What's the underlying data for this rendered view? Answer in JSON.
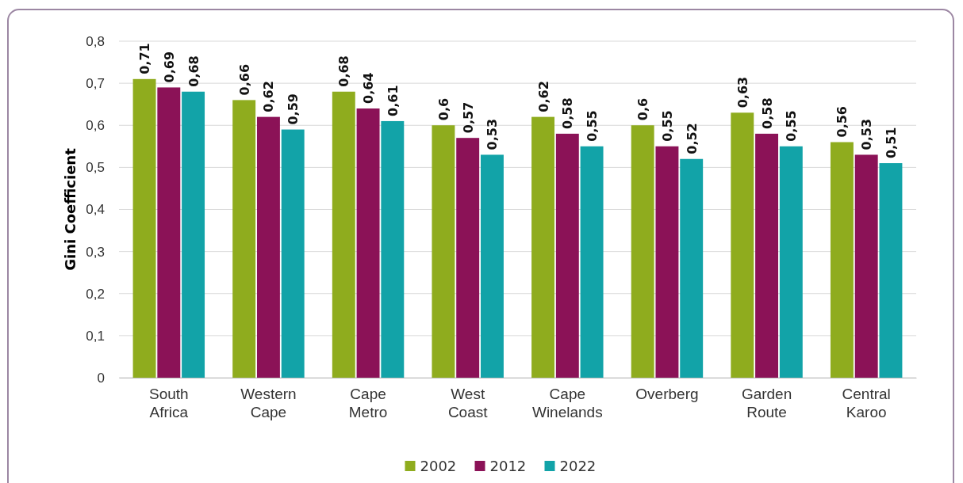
{
  "chart_data": {
    "type": "bar",
    "ylabel": "Gini Coefficient",
    "categories": [
      "South Africa",
      "Western Cape",
      "Cape Metro",
      "West Coast",
      "Cape Winelands",
      "Overberg",
      "Garden Route",
      "Central Karoo"
    ],
    "series": [
      {
        "name": "2002",
        "color": "#8fac1e",
        "values": [
          0.71,
          0.66,
          0.68,
          0.6,
          0.62,
          0.6,
          0.63,
          0.56
        ],
        "value_labels": [
          "0,71",
          "0,66",
          "0,68",
          "0,6",
          "0,62",
          "0,6",
          "0,63",
          "0,56"
        ]
      },
      {
        "name": "2012",
        "color": "#8b1257",
        "values": [
          0.69,
          0.62,
          0.64,
          0.57,
          0.58,
          0.55,
          0.58,
          0.53
        ],
        "value_labels": [
          "0,69",
          "0,62",
          "0,64",
          "0,57",
          "0,58",
          "0,55",
          "0,58",
          "0,53"
        ]
      },
      {
        "name": "2022",
        "color": "#12a3a8",
        "values": [
          0.68,
          0.59,
          0.61,
          0.53,
          0.55,
          0.52,
          0.55,
          0.51
        ],
        "value_labels": [
          "0,68",
          "0,59",
          "0,61",
          "0,53",
          "0,55",
          "0,52",
          "0,55",
          "0,51"
        ]
      }
    ],
    "ylim": [
      0,
      0.8
    ],
    "yticks": [
      {
        "value": 0,
        "label": "0"
      },
      {
        "value": 0.1,
        "label": "0,1"
      },
      {
        "value": 0.2,
        "label": "0,2"
      },
      {
        "value": 0.3,
        "label": "0,3"
      },
      {
        "value": 0.4,
        "label": "0,4"
      },
      {
        "value": 0.5,
        "label": "0,5"
      },
      {
        "value": 0.6,
        "label": "0,6"
      },
      {
        "value": 0.7,
        "label": "0,7"
      },
      {
        "value": 0.8,
        "label": "0,8"
      }
    ],
    "grid": "y",
    "legend": "bottom"
  }
}
